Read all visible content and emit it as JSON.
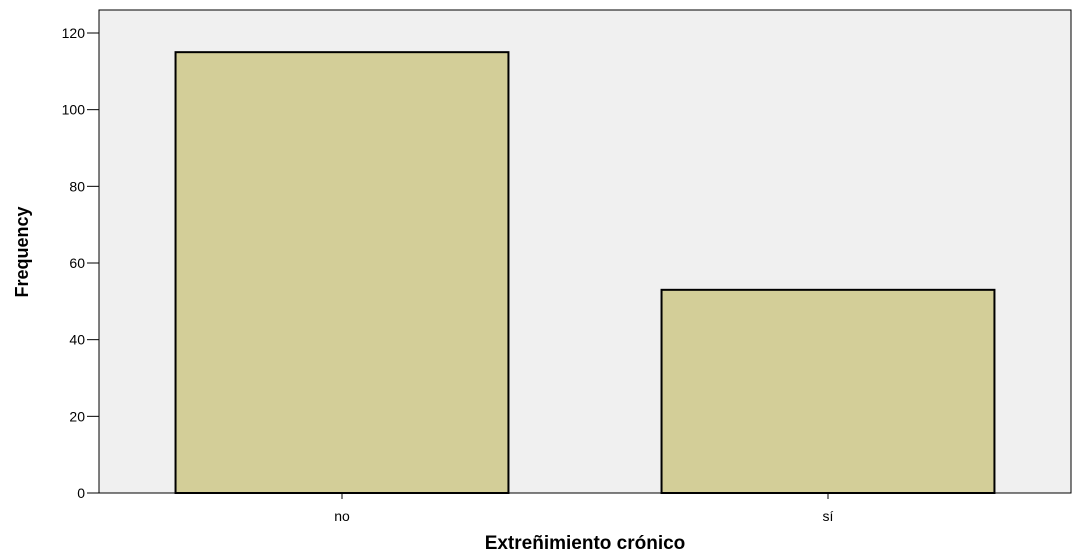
{
  "chart_data": {
    "type": "bar",
    "title": "",
    "xlabel": "Extreñimiento crónico",
    "ylabel": "Frequency",
    "categories": [
      "no",
      "sí"
    ],
    "values": [
      115,
      53
    ],
    "ylim": [
      0,
      126
    ],
    "yticks": [
      0,
      20,
      40,
      60,
      80,
      100,
      120
    ],
    "ytick_labels": [
      "0",
      "20",
      "40",
      "60",
      "80",
      "100",
      "120"
    ],
    "grid": false,
    "legend": "none",
    "colors": {
      "plot_background": "#F0F0F0",
      "bar_fill": "#D3CE98",
      "bar_stroke": "#000000",
      "axis": "#000000"
    }
  }
}
